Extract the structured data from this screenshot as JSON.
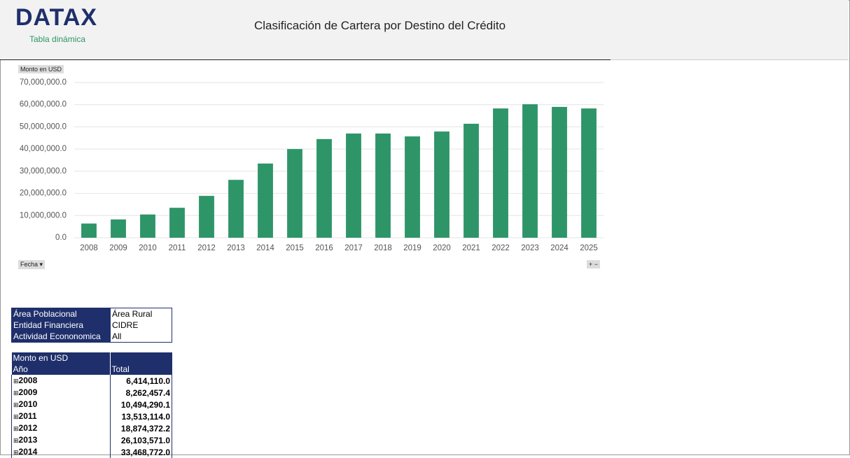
{
  "header": {
    "logo": "DATAX",
    "subtitle": "Tabla dinámica",
    "title": "Clasificación  de Cartera por Destino del Crédito"
  },
  "chart_data": {
    "type": "bar",
    "value_button": "Monto en USD",
    "axis_button": "Fecha",
    "categories": [
      "2008",
      "2009",
      "2010",
      "2011",
      "2012",
      "2013",
      "2014",
      "2015",
      "2016",
      "2017",
      "2018",
      "2019",
      "2020",
      "2021",
      "2022",
      "2023",
      "2024",
      "2025"
    ],
    "values": [
      6414110.0,
      8262457.4,
      10494290.1,
      13513114.0,
      18874372.2,
      26103571.0,
      33468772.0,
      40000000,
      44500000,
      47000000,
      47000000,
      45700000,
      47900000,
      51400000,
      58300000,
      60200000,
      59000000,
      58300000
    ],
    "color": "#2e9568",
    "ylim": [
      0,
      70000000
    ],
    "yticks": [
      {
        "value": 0,
        "label": "0.0"
      },
      {
        "value": 10000000,
        "label": "10,000,000.0"
      },
      {
        "value": 20000000,
        "label": "20,000,000.0"
      },
      {
        "value": 30000000,
        "label": "30,000,000.0"
      },
      {
        "value": 40000000,
        "label": "40,000,000.0"
      },
      {
        "value": 50000000,
        "label": "50,000,000.0"
      },
      {
        "value": 60000000,
        "label": "60,000,000.0"
      },
      {
        "value": 70000000,
        "label": "70,000,000.0"
      }
    ],
    "grid": true
  },
  "filters": [
    {
      "label": "Área Poblacional",
      "value": "Área Rural"
    },
    {
      "label": "Entidad Financiera",
      "value": "CIDRE"
    },
    {
      "label": "Actividad Econonomica",
      "value": "All"
    }
  ],
  "table": {
    "measure": "Monto en USD",
    "row_header": "Año",
    "col_header": "Total",
    "rows": [
      {
        "year": "2008",
        "total": "6,414,110.0"
      },
      {
        "year": "2009",
        "total": "8,262,457.4"
      },
      {
        "year": "2010",
        "total": "10,494,290.1"
      },
      {
        "year": "2011",
        "total": "13,513,114.0"
      },
      {
        "year": "2012",
        "total": "18,874,372.2"
      },
      {
        "year": "2013",
        "total": "26,103,571.0"
      },
      {
        "year": "2014",
        "total": "33,468,772.0"
      }
    ]
  }
}
